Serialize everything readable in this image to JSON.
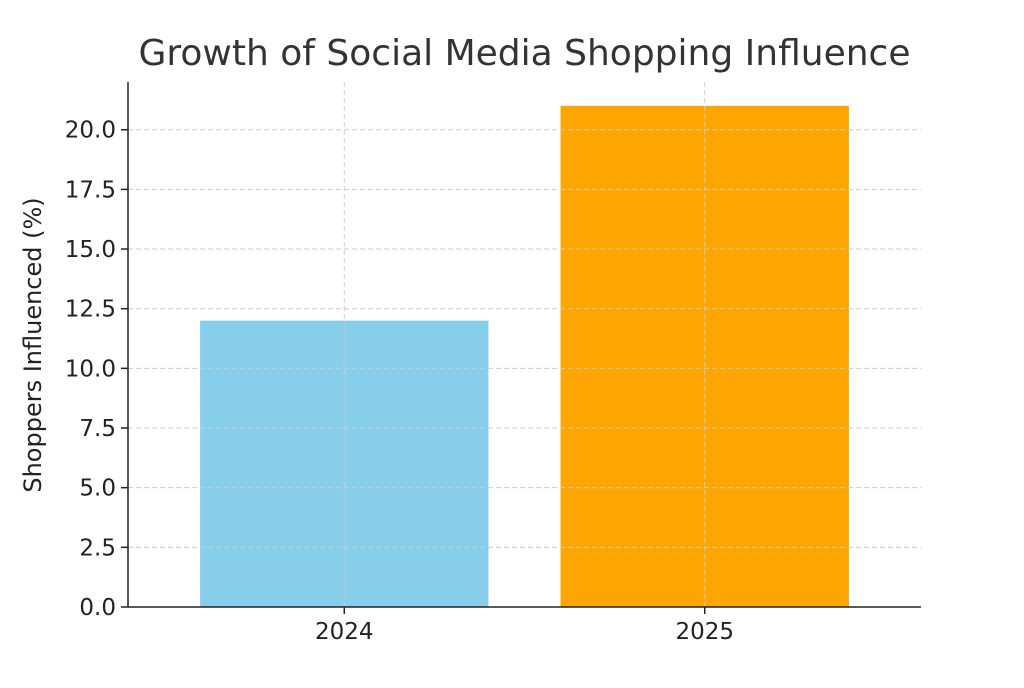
{
  "chart_data": {
    "type": "bar",
    "title": "Growth of Social Media Shopping Influence",
    "xlabel": "",
    "ylabel": "Shoppers Influenced (%)",
    "categories": [
      "2024",
      "2025"
    ],
    "values": [
      12,
      21
    ],
    "bar_colors": [
      "#87CEEB",
      "#FFA500"
    ],
    "ylim": [
      0,
      22
    ],
    "yticks": [
      0.0,
      2.5,
      5.0,
      7.5,
      10.0,
      12.5,
      15.0,
      17.5,
      20.0
    ],
    "ytick_labels": [
      "0.0",
      "2.5",
      "5.0",
      "7.5",
      "10.0",
      "12.5",
      "15.0",
      "17.5",
      "20.0"
    ],
    "grid": true,
    "grid_style": "dashed"
  }
}
